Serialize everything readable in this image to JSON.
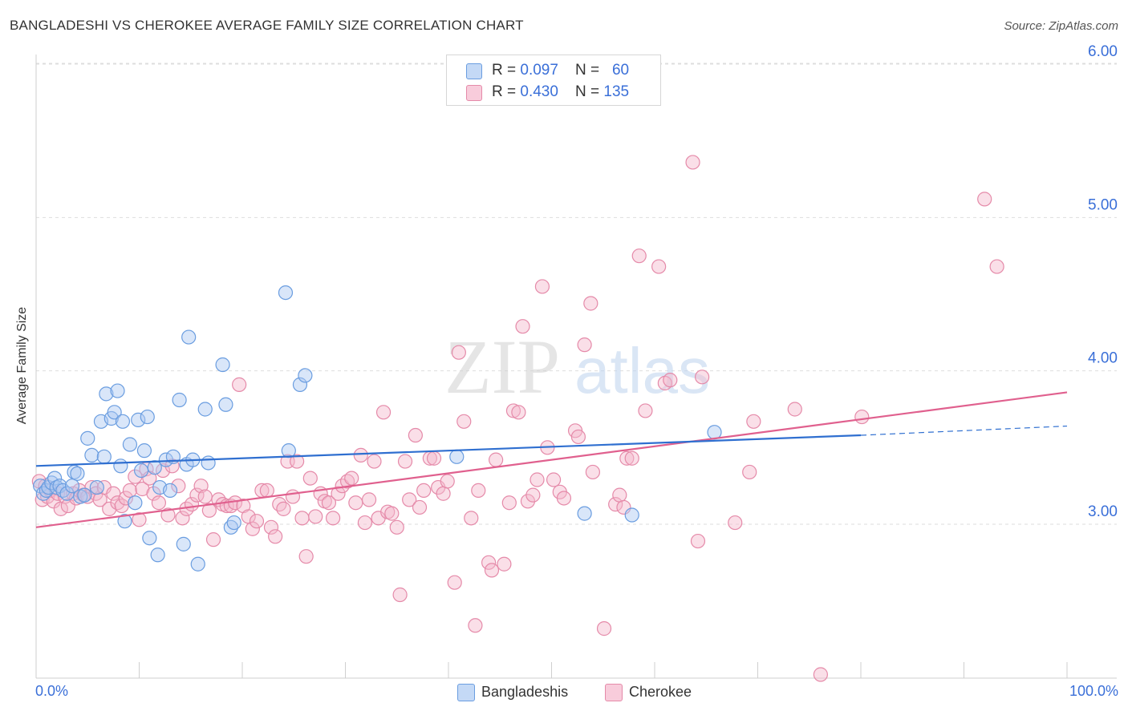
{
  "title": "BANGLADESHI VS CHEROKEE AVERAGE FAMILY SIZE CORRELATION CHART",
  "source": "Source: ZipAtlas.com",
  "legend_top": [
    {
      "r_label": "R = ",
      "r_value": "0.097",
      "n_label": "N = ",
      "n_value": "60"
    },
    {
      "r_label": "R = ",
      "r_value": "0.430",
      "n_label": "N = ",
      "n_value": "135"
    }
  ],
  "legend_bottom": [
    "Bangladeshis",
    "Cherokee"
  ],
  "colors": {
    "bangladeshi_fill": "#aac8f2",
    "bangladeshi_stroke": "#6a9de0",
    "bangladeshi_line": "#2f6fd0",
    "cherokee_fill": "#f5b8cc",
    "cherokee_stroke": "#e58aa9",
    "cherokee_line": "#e0608e",
    "tick_label": "#3a6fd8"
  },
  "chart_data": {
    "type": "scatter",
    "title": "BANGLADESHI VS CHEROKEE AVERAGE FAMILY SIZE CORRELATION CHART",
    "xlabel": "",
    "ylabel": "Average Family Size",
    "xlim": [
      0,
      100
    ],
    "ylim": [
      2.0,
      6.1
    ],
    "x_tick_labels": [
      "0.0%",
      "100.0%"
    ],
    "y_ticks": [
      3.0,
      4.0,
      5.0,
      6.0
    ],
    "y_tick_labels": [
      "3.00",
      "4.00",
      "5.00",
      "6.00"
    ],
    "grid": true,
    "legend_position": "top-center",
    "watermark": "ZIPatlas",
    "series": [
      {
        "name": "Bangladeshis",
        "R": 0.097,
        "N": 60,
        "trend": {
          "x": [
            0,
            80
          ],
          "y": [
            3.38,
            3.58
          ]
        },
        "trend_dashed": {
          "x": [
            80,
            100
          ],
          "y": [
            3.58,
            3.64
          ]
        },
        "points": [
          [
            0.4,
            3.25
          ],
          [
            0.7,
            3.2
          ],
          [
            1.0,
            3.22
          ],
          [
            1.2,
            3.24
          ],
          [
            1.5,
            3.27
          ],
          [
            1.8,
            3.3
          ],
          [
            2.0,
            3.24
          ],
          [
            2.3,
            3.25
          ],
          [
            2.6,
            3.22
          ],
          [
            3.0,
            3.2
          ],
          [
            3.5,
            3.25
          ],
          [
            3.7,
            3.34
          ],
          [
            4.0,
            3.33
          ],
          [
            4.3,
            3.18
          ],
          [
            4.7,
            3.19
          ],
          [
            5.0,
            3.56
          ],
          [
            5.4,
            3.45
          ],
          [
            5.9,
            3.24
          ],
          [
            6.3,
            3.67
          ],
          [
            6.6,
            3.44
          ],
          [
            6.8,
            3.85
          ],
          [
            7.3,
            3.69
          ],
          [
            7.6,
            3.73
          ],
          [
            7.9,
            3.87
          ],
          [
            8.2,
            3.38
          ],
          [
            8.4,
            3.67
          ],
          [
            8.6,
            3.02
          ],
          [
            9.1,
            3.52
          ],
          [
            9.6,
            3.14
          ],
          [
            9.9,
            3.68
          ],
          [
            10.2,
            3.35
          ],
          [
            10.5,
            3.48
          ],
          [
            10.8,
            3.7
          ],
          [
            11.0,
            2.91
          ],
          [
            11.5,
            3.37
          ],
          [
            11.8,
            2.8
          ],
          [
            12.0,
            3.24
          ],
          [
            12.6,
            3.42
          ],
          [
            13.0,
            3.22
          ],
          [
            13.3,
            3.44
          ],
          [
            13.9,
            3.81
          ],
          [
            14.3,
            2.87
          ],
          [
            14.6,
            3.39
          ],
          [
            14.8,
            4.22
          ],
          [
            15.2,
            3.42
          ],
          [
            15.7,
            2.74
          ],
          [
            16.4,
            3.75
          ],
          [
            16.7,
            3.4
          ],
          [
            18.1,
            4.04
          ],
          [
            18.4,
            3.78
          ],
          [
            18.9,
            2.98
          ],
          [
            19.2,
            3.01
          ],
          [
            24.2,
            4.51
          ],
          [
            24.5,
            3.48
          ],
          [
            25.6,
            3.91
          ],
          [
            26.1,
            3.97
          ],
          [
            40.8,
            3.44
          ],
          [
            53.2,
            3.07
          ],
          [
            57.8,
            3.06
          ],
          [
            65.8,
            3.6
          ]
        ]
      },
      {
        "name": "Cherokee",
        "R": 0.43,
        "N": 135,
        "trend": {
          "x": [
            0,
            100
          ],
          "y": [
            2.98,
            3.86
          ]
        },
        "points": [
          [
            0.3,
            3.28
          ],
          [
            0.6,
            3.16
          ],
          [
            0.9,
            3.25
          ],
          [
            1.1,
            3.18
          ],
          [
            1.4,
            3.22
          ],
          [
            1.7,
            3.15
          ],
          [
            2.1,
            3.2
          ],
          [
            2.4,
            3.1
          ],
          [
            2.8,
            3.18
          ],
          [
            3.1,
            3.12
          ],
          [
            3.6,
            3.2
          ],
          [
            3.9,
            3.17
          ],
          [
            4.2,
            3.22
          ],
          [
            4.6,
            3.19
          ],
          [
            5.0,
            3.18
          ],
          [
            5.4,
            3.24
          ],
          [
            5.8,
            3.2
          ],
          [
            6.2,
            3.16
          ],
          [
            6.6,
            3.24
          ],
          [
            7.1,
            3.1
          ],
          [
            7.5,
            3.2
          ],
          [
            7.9,
            3.14
          ],
          [
            8.3,
            3.12
          ],
          [
            8.7,
            3.17
          ],
          [
            9.1,
            3.22
          ],
          [
            9.6,
            3.31
          ],
          [
            10.0,
            3.03
          ],
          [
            10.3,
            3.23
          ],
          [
            10.7,
            3.36
          ],
          [
            11.0,
            3.3
          ],
          [
            11.4,
            3.2
          ],
          [
            11.9,
            3.14
          ],
          [
            12.3,
            3.35
          ],
          [
            12.8,
            3.06
          ],
          [
            13.2,
            3.38
          ],
          [
            13.8,
            3.25
          ],
          [
            14.2,
            3.04
          ],
          [
            14.6,
            3.1
          ],
          [
            15.1,
            3.13
          ],
          [
            15.6,
            3.19
          ],
          [
            16.0,
            3.25
          ],
          [
            16.4,
            3.18
          ],
          [
            16.8,
            3.09
          ],
          [
            17.2,
            2.9
          ],
          [
            17.7,
            3.16
          ],
          [
            18.1,
            3.13
          ],
          [
            18.5,
            3.12
          ],
          [
            18.9,
            3.12
          ],
          [
            19.3,
            3.14
          ],
          [
            19.7,
            3.91
          ],
          [
            20.1,
            3.12
          ],
          [
            20.6,
            3.05
          ],
          [
            21.0,
            2.97
          ],
          [
            21.4,
            3.02
          ],
          [
            21.9,
            3.22
          ],
          [
            22.4,
            3.22
          ],
          [
            22.8,
            2.98
          ],
          [
            23.2,
            2.92
          ],
          [
            23.6,
            3.13
          ],
          [
            24.0,
            3.1
          ],
          [
            24.4,
            3.41
          ],
          [
            24.9,
            3.18
          ],
          [
            25.3,
            3.41
          ],
          [
            25.8,
            3.04
          ],
          [
            26.2,
            2.79
          ],
          [
            26.6,
            3.3
          ],
          [
            27.1,
            3.05
          ],
          [
            27.6,
            3.2
          ],
          [
            28.0,
            3.15
          ],
          [
            28.4,
            3.14
          ],
          [
            28.8,
            3.04
          ],
          [
            29.3,
            3.2
          ],
          [
            29.7,
            3.25
          ],
          [
            30.2,
            3.28
          ],
          [
            30.6,
            3.3
          ],
          [
            31.0,
            3.14
          ],
          [
            31.5,
            3.45
          ],
          [
            31.9,
            3.01
          ],
          [
            32.3,
            3.16
          ],
          [
            32.8,
            3.41
          ],
          [
            33.2,
            3.04
          ],
          [
            33.7,
            3.73
          ],
          [
            34.1,
            3.08
          ],
          [
            34.5,
            3.07
          ],
          [
            35.0,
            2.98
          ],
          [
            35.3,
            2.54
          ],
          [
            35.8,
            3.41
          ],
          [
            36.2,
            3.16
          ],
          [
            36.8,
            3.58
          ],
          [
            37.2,
            3.11
          ],
          [
            37.6,
            3.22
          ],
          [
            38.2,
            3.43
          ],
          [
            38.6,
            3.43
          ],
          [
            39.0,
            3.24
          ],
          [
            39.5,
            3.2
          ],
          [
            39.9,
            3.28
          ],
          [
            40.6,
            2.62
          ],
          [
            41.0,
            4.12
          ],
          [
            41.5,
            3.67
          ],
          [
            42.2,
            3.04
          ],
          [
            42.6,
            2.34
          ],
          [
            42.9,
            3.22
          ],
          [
            43.9,
            2.75
          ],
          [
            44.2,
            2.7
          ],
          [
            44.6,
            3.42
          ],
          [
            45.4,
            2.74
          ],
          [
            45.9,
            3.14
          ],
          [
            46.3,
            3.74
          ],
          [
            46.8,
            3.73
          ],
          [
            47.2,
            4.29
          ],
          [
            47.7,
            3.15
          ],
          [
            48.2,
            3.19
          ],
          [
            48.6,
            3.29
          ],
          [
            49.1,
            4.55
          ],
          [
            49.6,
            3.5
          ],
          [
            50.2,
            3.29
          ],
          [
            50.8,
            3.21
          ],
          [
            51.2,
            3.17
          ],
          [
            52.3,
            3.61
          ],
          [
            52.6,
            3.57
          ],
          [
            53.2,
            4.17
          ],
          [
            53.8,
            4.44
          ],
          [
            54.0,
            3.34
          ],
          [
            55.1,
            2.32
          ],
          [
            56.2,
            3.13
          ],
          [
            56.6,
            3.19
          ],
          [
            57.0,
            3.11
          ],
          [
            57.3,
            3.43
          ],
          [
            57.8,
            3.43
          ],
          [
            58.5,
            4.75
          ],
          [
            59.1,
            3.74
          ],
          [
            60.4,
            4.68
          ],
          [
            61.0,
            3.92
          ],
          [
            61.5,
            3.94
          ],
          [
            63.7,
            5.36
          ],
          [
            64.2,
            2.89
          ],
          [
            64.6,
            3.96
          ],
          [
            67.8,
            3.01
          ],
          [
            69.2,
            3.34
          ],
          [
            69.6,
            3.67
          ],
          [
            73.6,
            3.75
          ],
          [
            76.1,
            2.02
          ],
          [
            80.1,
            3.7
          ],
          [
            92.0,
            5.12
          ],
          [
            93.2,
            4.68
          ]
        ]
      }
    ]
  }
}
